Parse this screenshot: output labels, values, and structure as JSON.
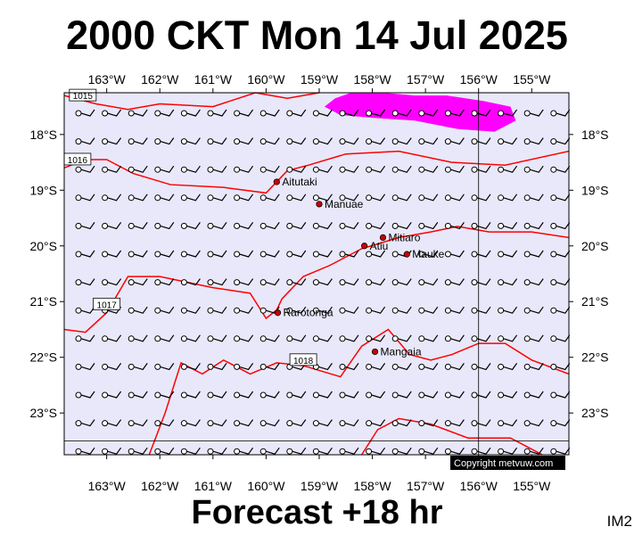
{
  "title": "2000 CKT Mon 14 Jul 2025",
  "footer": "Forecast +18 hr",
  "model_tag": "IM2",
  "copyright": "Copyright metvuw.com",
  "colors": {
    "map_background": "#e8e8fa",
    "isobar": "#ff0000",
    "rain_fill": "#ff00ff",
    "wind_barb": "#000000",
    "town_marker": "#cc0000"
  },
  "map": {
    "projection": "lonlat",
    "lon_range": [
      -163.8,
      -154.3
    ],
    "lat_range": [
      -23.75,
      -17.25
    ],
    "lon_ticks": [
      {
        "value": -163,
        "label": "163°W"
      },
      {
        "value": -162,
        "label": "162°W"
      },
      {
        "value": -161,
        "label": "161°W"
      },
      {
        "value": -160,
        "label": "160°W"
      },
      {
        "value": -159,
        "label": "159°W"
      },
      {
        "value": -158,
        "label": "158°W"
      },
      {
        "value": -157,
        "label": "157°W"
      },
      {
        "value": -156,
        "label": "156°W"
      },
      {
        "value": -155,
        "label": "155°W"
      }
    ],
    "lat_ticks": [
      {
        "value": -18,
        "label": "18°S"
      },
      {
        "value": -19,
        "label": "19°S"
      },
      {
        "value": -20,
        "label": "20°S"
      },
      {
        "value": -21,
        "label": "21°S"
      },
      {
        "value": -22,
        "label": "22°S"
      },
      {
        "value": -23,
        "label": "23°S"
      }
    ],
    "reference_lines": {
      "lon": -156,
      "lat": -23.5
    }
  },
  "places": [
    {
      "name": "Aitutaki",
      "lon": -159.8,
      "lat": -18.85
    },
    {
      "name": "Manuae",
      "lon": -159.0,
      "lat": -19.25
    },
    {
      "name": "Mitiaro",
      "lon": -157.8,
      "lat": -19.85
    },
    {
      "name": "Atiu",
      "lon": -158.15,
      "lat": -20.0
    },
    {
      "name": "Mauke",
      "lon": -157.35,
      "lat": -20.15
    },
    {
      "name": "Rarotonga",
      "lon": -159.78,
      "lat": -21.2
    },
    {
      "name": "Mangaia",
      "lon": -157.95,
      "lat": -21.9
    }
  ],
  "isobars": [
    {
      "label": "1015",
      "points": [
        [
          -163.8,
          -17.3
        ],
        [
          -163.2,
          -17.45
        ],
        [
          -162.6,
          -17.55
        ],
        [
          -162.0,
          -17.45
        ],
        [
          -161.0,
          -17.5
        ],
        [
          -160.2,
          -17.25
        ],
        [
          -159.6,
          -17.35
        ],
        [
          -159.0,
          -17.25
        ]
      ],
      "label_at": [
        -163.45,
        -17.3
      ]
    },
    {
      "label": "1016",
      "points": [
        [
          -163.8,
          -18.6
        ],
        [
          -163.4,
          -18.45
        ],
        [
          -163.0,
          -18.45
        ],
        [
          -162.5,
          -18.7
        ],
        [
          -161.8,
          -18.9
        ],
        [
          -160.8,
          -18.95
        ],
        [
          -160.0,
          -19.05
        ],
        [
          -159.6,
          -18.65
        ],
        [
          -159.2,
          -18.55
        ],
        [
          -158.5,
          -18.35
        ],
        [
          -157.5,
          -18.3
        ],
        [
          -156.5,
          -18.5
        ],
        [
          -155.5,
          -18.55
        ],
        [
          -154.3,
          -18.3
        ]
      ],
      "label_at": [
        -163.55,
        -18.45
      ]
    },
    {
      "label": "1017",
      "points": [
        [
          -163.8,
          -21.5
        ],
        [
          -163.4,
          -21.55
        ],
        [
          -163.0,
          -21.2
        ],
        [
          -162.6,
          -20.55
        ],
        [
          -162.0,
          -20.55
        ],
        [
          -161.0,
          -20.75
        ],
        [
          -160.3,
          -20.85
        ],
        [
          -160.0,
          -21.3
        ],
        [
          -159.8,
          -21.15
        ],
        [
          -159.7,
          -20.95
        ],
        [
          -159.3,
          -20.55
        ],
        [
          -158.8,
          -20.35
        ],
        [
          -158.2,
          -20.05
        ],
        [
          -157.5,
          -19.85
        ],
        [
          -156.9,
          -19.75
        ],
        [
          -156.4,
          -19.65
        ],
        [
          -155.8,
          -19.75
        ],
        [
          -155.0,
          -19.75
        ],
        [
          -154.3,
          -19.85
        ]
      ],
      "label_at": [
        -163.0,
        -21.05
      ]
    },
    {
      "label": "1018",
      "points": [
        [
          -162.2,
          -23.75
        ],
        [
          -161.9,
          -23.0
        ],
        [
          -161.6,
          -22.1
        ],
        [
          -161.2,
          -22.3
        ],
        [
          -160.8,
          -22.05
        ],
        [
          -160.3,
          -22.3
        ],
        [
          -159.8,
          -22.1
        ],
        [
          -159.3,
          -22.15
        ],
        [
          -158.6,
          -22.35
        ],
        [
          -158.2,
          -21.8
        ],
        [
          -157.7,
          -21.5
        ],
        [
          -157.3,
          -21.95
        ],
        [
          -156.9,
          -22.05
        ],
        [
          -156.5,
          -21.95
        ],
        [
          -156.0,
          -21.75
        ],
        [
          -155.5,
          -21.75
        ],
        [
          -155.0,
          -22.05
        ],
        [
          -154.3,
          -22.3
        ]
      ],
      "label_at": [
        -159.3,
        -22.05
      ]
    },
    {
      "label": "",
      "points": [
        [
          -158.2,
          -23.75
        ],
        [
          -157.9,
          -23.3
        ],
        [
          -157.5,
          -23.1
        ],
        [
          -156.9,
          -23.2
        ],
        [
          -156.2,
          -23.45
        ],
        [
          -155.4,
          -23.45
        ],
        [
          -154.8,
          -23.75
        ]
      ],
      "label_at": null
    }
  ],
  "rain_area": {
    "points": [
      [
        -158.7,
        -17.35
      ],
      [
        -158.4,
        -17.25
      ],
      [
        -157.8,
        -17.25
      ],
      [
        -157.2,
        -17.3
      ],
      [
        -156.6,
        -17.3
      ],
      [
        -155.9,
        -17.4
      ],
      [
        -155.4,
        -17.5
      ],
      [
        -155.3,
        -17.75
      ],
      [
        -155.7,
        -17.95
      ],
      [
        -156.4,
        -17.9
      ],
      [
        -157.2,
        -17.75
      ],
      [
        -158.0,
        -17.7
      ],
      [
        -158.6,
        -17.65
      ],
      [
        -158.9,
        -17.5
      ]
    ]
  }
}
